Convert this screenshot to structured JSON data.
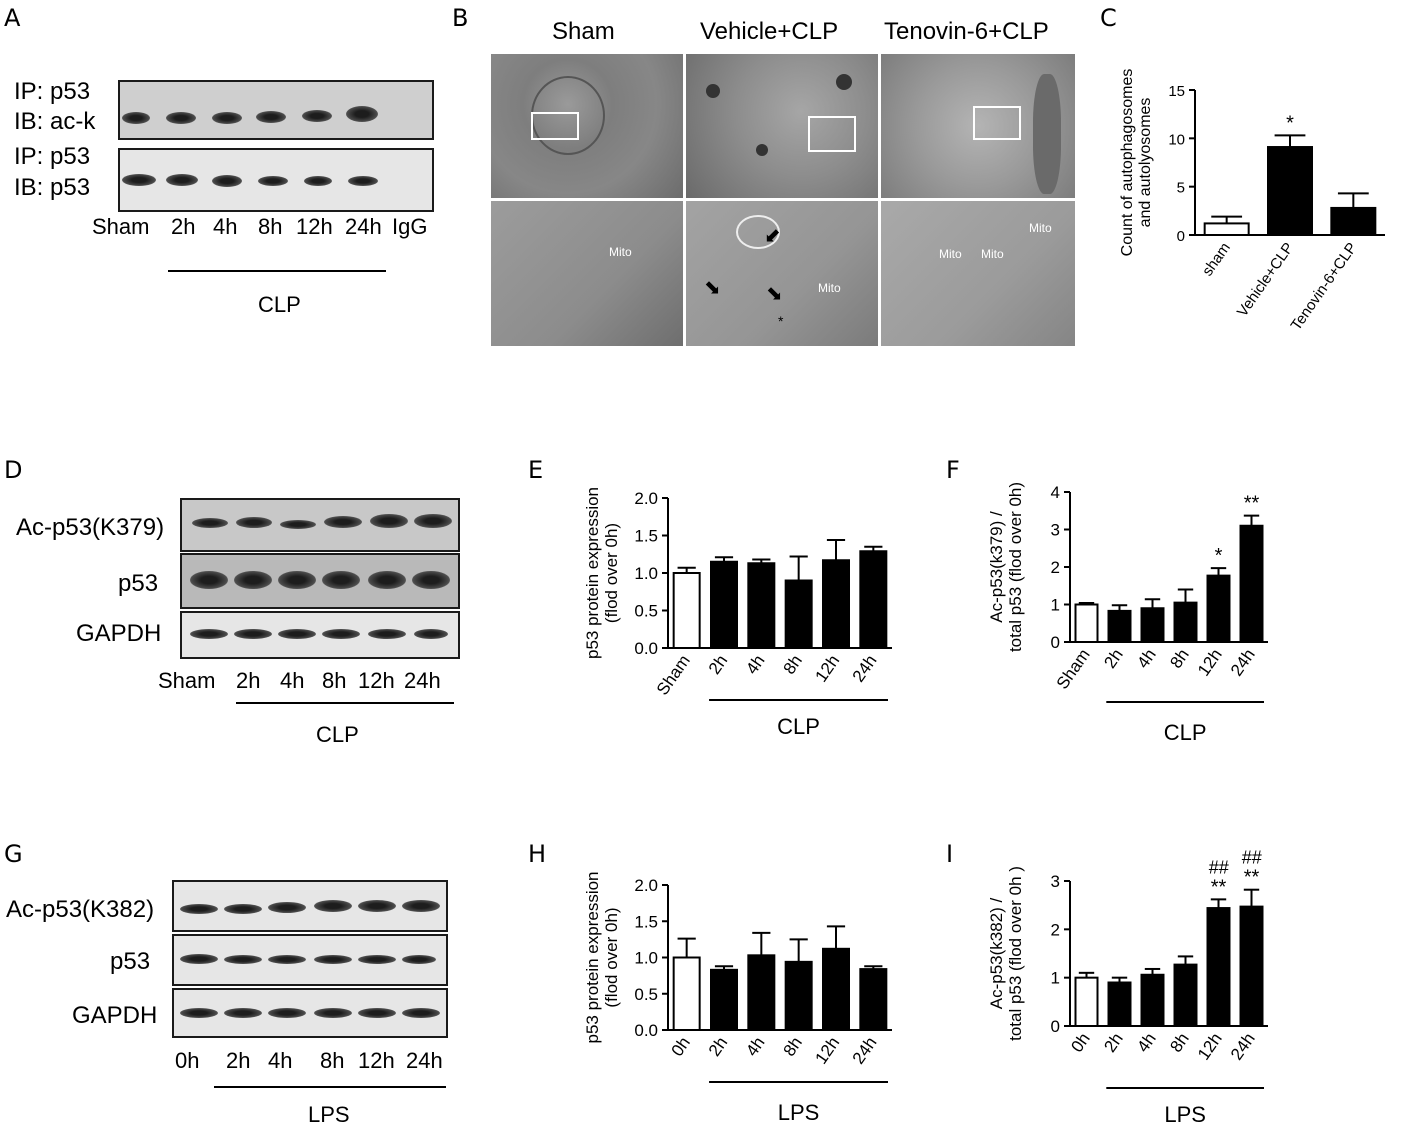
{
  "panels": {
    "A": {
      "letter": "A",
      "row_labels": [
        "IP: p53",
        "IB: ac-k",
        "IP: p53",
        "IB: p53"
      ],
      "lanes": [
        "Sham",
        "2h",
        "4h",
        "8h",
        "12h",
        "24h",
        "IgG"
      ],
      "group": "CLP"
    },
    "B": {
      "letter": "B",
      "titles": [
        "Sham",
        "Vehicle+CLP",
        "Tenovin-6+CLP"
      ],
      "mito": "Mito",
      "star": "*"
    },
    "D": {
      "letter": "D",
      "rows": [
        "Ac-p53(K379)",
        "p53",
        "GAPDH"
      ],
      "lanes": [
        "Sham",
        "2h",
        "4h",
        "8h",
        "12h",
        "24h"
      ],
      "group": "CLP"
    },
    "G": {
      "letter": "G",
      "rows": [
        "Ac-p53(K382)",
        "p53",
        "GAPDH"
      ],
      "lanes": [
        "0h",
        "2h",
        "4h",
        "8h",
        "12h",
        "24h"
      ],
      "group": "LPS"
    },
    "C": {
      "letter": "C"
    },
    "E": {
      "letter": "E"
    },
    "F": {
      "letter": "F"
    },
    "H": {
      "letter": "H"
    },
    "I": {
      "letter": "I"
    }
  },
  "chart_data": [
    {
      "id": "C",
      "type": "bar",
      "categories": [
        "sham",
        "Vehicle+CLP",
        "Tenovin-6+CLP"
      ],
      "values": [
        1.2,
        9.1,
        2.8
      ],
      "errors": [
        0.7,
        1.2,
        1.5
      ],
      "fills": [
        "#ffffff",
        "#000000",
        "#000000"
      ],
      "sig": [
        "",
        "*",
        ""
      ],
      "ylabel": [
        "Count of autophagosomes",
        "and autolyosomes"
      ],
      "ylim": [
        0,
        15
      ],
      "yticks": [
        0,
        5,
        10,
        15
      ],
      "group": ""
    },
    {
      "id": "E",
      "type": "bar",
      "categories": [
        "Sham",
        "2h",
        "4h",
        "8h",
        "12h",
        "24h"
      ],
      "values": [
        1.0,
        1.15,
        1.13,
        0.9,
        1.17,
        1.29
      ],
      "errors": [
        0.07,
        0.06,
        0.05,
        0.32,
        0.27,
        0.06
      ],
      "fills": [
        "#ffffff",
        "#000000",
        "#000000",
        "#000000",
        "#000000",
        "#000000"
      ],
      "sig": [
        "",
        "",
        "",
        "",
        "",
        ""
      ],
      "ylabel": [
        "p53 protein expression",
        "(flod over 0h)"
      ],
      "ylim": [
        0,
        2.0
      ],
      "yticks": [
        "0.0",
        "0.5",
        "1.0",
        "1.5",
        "2.0"
      ],
      "group": "CLP"
    },
    {
      "id": "F",
      "type": "bar",
      "categories": [
        "Sham",
        "2h",
        "4h",
        "8h",
        "12h",
        "24h"
      ],
      "values": [
        1.0,
        0.83,
        0.9,
        1.05,
        1.77,
        3.1
      ],
      "errors": [
        0.04,
        0.15,
        0.24,
        0.35,
        0.2,
        0.27
      ],
      "fills": [
        "#ffffff",
        "#000000",
        "#000000",
        "#000000",
        "#000000",
        "#000000"
      ],
      "sig": [
        "",
        "",
        "",
        "",
        "*",
        "**"
      ],
      "ylabel": [
        "Ac-p53(k379) /",
        "total p53 (flod over 0h)"
      ],
      "ylim": [
        0,
        4
      ],
      "yticks": [
        0,
        1,
        2,
        3,
        4
      ],
      "group": "CLP"
    },
    {
      "id": "H",
      "type": "bar",
      "categories": [
        "0h",
        "2h",
        "4h",
        "8h",
        "12h",
        "24h"
      ],
      "values": [
        1.0,
        0.83,
        1.03,
        0.94,
        1.12,
        0.84
      ],
      "errors": [
        0.26,
        0.05,
        0.31,
        0.31,
        0.31,
        0.04
      ],
      "fills": [
        "#ffffff",
        "#000000",
        "#000000",
        "#000000",
        "#000000",
        "#000000"
      ],
      "sig": [
        "",
        "",
        "",
        "",
        "",
        ""
      ],
      "ylabel": [
        "p53 protein expression",
        "(flod over 0h)"
      ],
      "ylim": [
        0,
        2.0
      ],
      "yticks": [
        "0.0",
        "0.5",
        "1.0",
        "1.5",
        "2.0"
      ],
      "group": "LPS"
    },
    {
      "id": "I",
      "type": "bar",
      "categories": [
        "0h",
        "2h",
        "4h",
        "8h",
        "12h",
        "24h"
      ],
      "values": [
        1.0,
        0.9,
        1.06,
        1.27,
        2.44,
        2.47
      ],
      "errors": [
        0.1,
        0.1,
        0.12,
        0.17,
        0.18,
        0.35
      ],
      "fills": [
        "#ffffff",
        "#000000",
        "#000000",
        "#000000",
        "#000000",
        "#000000"
      ],
      "sig": [
        "",
        "",
        "",
        "",
        "**",
        "**"
      ],
      "sig2": [
        "",
        "",
        "",
        "",
        "##",
        "##"
      ],
      "ylabel": [
        "Ac-p53(k382) /",
        "total p53 (flod over 0h )"
      ],
      "ylim": [
        0,
        3
      ],
      "yticks": [
        0,
        1,
        2,
        3
      ],
      "group": "LPS"
    }
  ]
}
